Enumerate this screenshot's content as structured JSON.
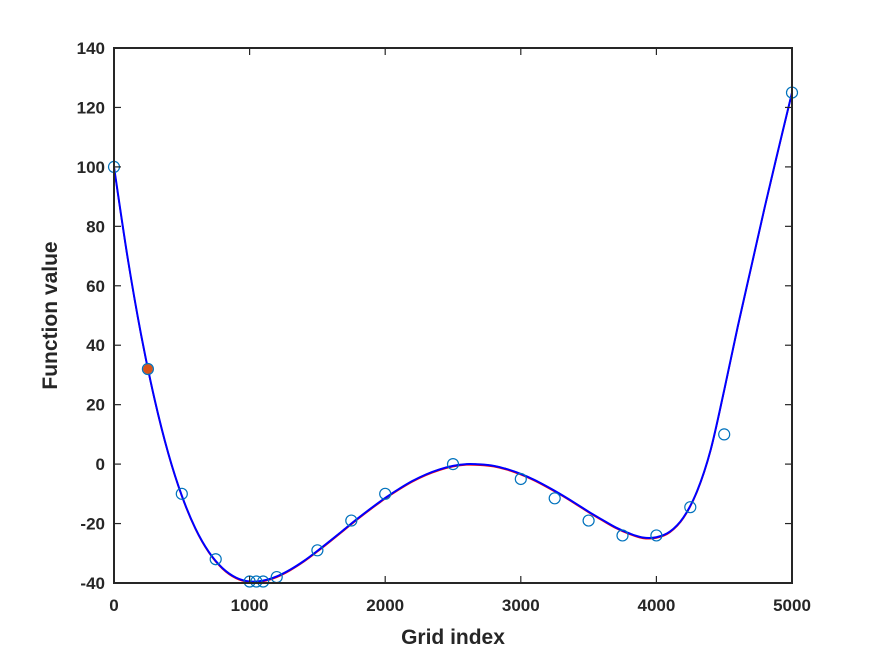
{
  "chart_data": {
    "type": "line",
    "title": "",
    "xlabel": "Grid index",
    "ylabel": "Function value",
    "xlim": [
      0,
      5000
    ],
    "ylim": [
      -40,
      140
    ],
    "xticks": [
      0,
      1000,
      2000,
      3000,
      4000,
      5000
    ],
    "yticks": [
      -40,
      -20,
      0,
      20,
      40,
      60,
      80,
      100,
      120,
      140
    ],
    "grid": false,
    "legend": "none",
    "colors": {
      "curve_primary": "#0000FF",
      "curve_secondary": "#FF0000",
      "curve_dashed": "#000000",
      "markers": "#0072BD",
      "highlight_marker": "#D95319",
      "axes": "#262626"
    },
    "curve": {
      "x": [
        0,
        100,
        200,
        300,
        400,
        500,
        600,
        700,
        800,
        900,
        1000,
        1100,
        1200,
        1300,
        1400,
        1500,
        1600,
        1700,
        1800,
        1900,
        2000,
        2100,
        2200,
        2300,
        2400,
        2500,
        2600,
        2700,
        2800,
        2900,
        3000,
        3100,
        3200,
        3300,
        3400,
        3500,
        3600,
        3700,
        3800,
        3900,
        4000,
        4100,
        4200,
        4300,
        4400,
        4500,
        4600,
        4700,
        4800,
        4900,
        5000
      ],
      "y": [
        100,
        69.6,
        43.5,
        21.7,
        3.7,
        -10.6,
        -21.6,
        -29.6,
        -35.0,
        -38.2,
        -39.5,
        -39.2,
        -37.8,
        -35.5,
        -32.6,
        -29.2,
        -25.6,
        -21.9,
        -18.2,
        -14.7,
        -11.4,
        -8.4,
        -5.7,
        -3.5,
        -1.8,
        -0.6,
        0.0,
        -0.1,
        -0.6,
        -1.7,
        -3.3,
        -5.3,
        -7.7,
        -10.3,
        -13.1,
        -16.0,
        -18.7,
        -21.3,
        -23.3,
        -24.7,
        -24.6,
        -22.7,
        -17.9,
        -9.1,
        4.8,
        24.9,
        46.3,
        66.5,
        86.7,
        106.0,
        125.0
      ]
    },
    "samples": {
      "x": [
        0,
        250,
        500,
        750,
        1000,
        1050,
        1100,
        1200,
        1500,
        1750,
        2000,
        2500,
        3000,
        3250,
        3500,
        3750,
        4000,
        4250,
        4500,
        5000
      ],
      "y": [
        100,
        32,
        -10,
        -32,
        -39.5,
        -39.5,
        -39.5,
        -38,
        -29,
        -19,
        -10,
        0,
        -5,
        -11.5,
        -19,
        -24,
        -24,
        -14.5,
        10,
        125
      ]
    },
    "highlight_point": {
      "x": 250,
      "y": 32
    }
  }
}
